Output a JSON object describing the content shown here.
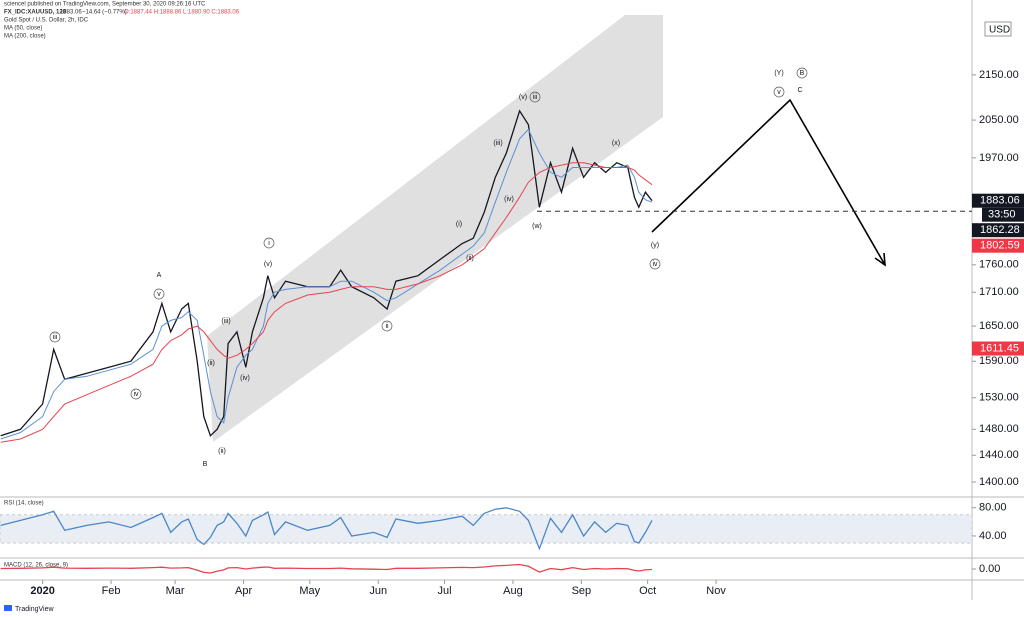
{
  "header": {
    "publisher": "sciencel published on TradingView.com, September 30, 2020 09:26:16 UTC",
    "symbol": "FX_IDC:XAUUSD, 120",
    "last": "1883.06",
    "change": "−14.64 (−0.77%)",
    "ohlc": "O:1887.44  H:1888.86  L:1880.90  C:1883.06",
    "currency": "USD",
    "countdown": "33:50",
    "logo": "TradingView"
  },
  "chart_data": [
    {
      "type": "line",
      "log_scale": true,
      "grid": false,
      "x": [
        -19,
        -10,
        0,
        5,
        10,
        20,
        30,
        40,
        50,
        54,
        58,
        63,
        66,
        70,
        73,
        76,
        79,
        82,
        84,
        88,
        92,
        95,
        100,
        102,
        105,
        110,
        120,
        130,
        135,
        140,
        150,
        156,
        160,
        170,
        180,
        190,
        195,
        200,
        205,
        210,
        216,
        220,
        225,
        230,
        235,
        240,
        245,
        250,
        255,
        260,
        265,
        268,
        270,
        273,
        276
      ],
      "xlim": [
        -19.3,
        420.9
      ],
      "xticks": [
        {
          "value": 0,
          "label": "2020"
        },
        {
          "value": 31,
          "label": "Feb"
        },
        {
          "value": 60,
          "label": "Mar"
        },
        {
          "value": 91,
          "label": "Apr"
        },
        {
          "value": 121,
          "label": "May"
        },
        {
          "value": 152,
          "label": "Jun"
        },
        {
          "value": 182,
          "label": "Jul"
        },
        {
          "value": 213,
          "label": "Aug"
        },
        {
          "value": 244,
          "label": "Sep"
        },
        {
          "value": 274,
          "label": "Oct"
        },
        {
          "value": 305,
          "label": "Nov"
        }
      ],
      "ylim": [
        1381,
        2290
      ],
      "yticks": [
        {
          "value": 1400,
          "label": "1400.00"
        },
        {
          "value": 1440,
          "label": "1440.00"
        },
        {
          "value": 1480,
          "label": "1480.00"
        },
        {
          "value": 1530,
          "label": "1530.00"
        },
        {
          "value": 1590,
          "label": "1590.00"
        },
        {
          "value": 1650,
          "label": "1650.00"
        },
        {
          "value": 1710,
          "label": "1710.00"
        },
        {
          "value": 1760,
          "label": "1760.00"
        },
        {
          "value": 1970,
          "label": "1970.00"
        },
        {
          "value": 2050,
          "label": "2050.00"
        },
        {
          "value": 2150,
          "label": "2150.00"
        }
      ],
      "series": [
        {
          "name": "Gold Spot / U.S. Dollar, 2h, IDC",
          "color": "#131722",
          "values": [
            1470,
            1480,
            1520,
            1610,
            1560,
            1570,
            1580,
            1590,
            1640,
            1690,
            1640,
            1680,
            1690,
            1590,
            1500,
            1470,
            1480,
            1500,
            1620,
            1640,
            1580,
            1640,
            1700,
            1740,
            1700,
            1730,
            1720,
            1720,
            1750,
            1720,
            1700,
            1680,
            1730,
            1740,
            1770,
            1800,
            1810,
            1860,
            1930,
            1980,
            2070,
            2040,
            1870,
            1960,
            1900,
            1990,
            1930,
            1960,
            1940,
            1960,
            1950,
            1890,
            1870,
            1900,
            1883.06
          ]
        },
        {
          "name": "MA (50, close)",
          "color": "#5b8fd6",
          "values": [
            1465,
            1475,
            1500,
            1540,
            1560,
            1565,
            1575,
            1585,
            1610,
            1650,
            1660,
            1665,
            1675,
            1660,
            1600,
            1540,
            1500,
            1490,
            1530,
            1580,
            1600,
            1610,
            1650,
            1690,
            1710,
            1715,
            1720,
            1720,
            1730,
            1730,
            1710,
            1695,
            1700,
            1725,
            1750,
            1780,
            1795,
            1820,
            1880,
            1940,
            2010,
            2030,
            1980,
            1940,
            1930,
            1950,
            1950,
            1950,
            1950,
            1950,
            1955,
            1930,
            1900,
            1885,
            1880
          ]
        },
        {
          "name": "MA (200, close)",
          "color": "#e8424f",
          "values": [
            1460,
            1465,
            1480,
            1500,
            1520,
            1535,
            1550,
            1565,
            1585,
            1610,
            1625,
            1635,
            1645,
            1650,
            1640,
            1625,
            1610,
            1600,
            1595,
            1600,
            1610,
            1620,
            1640,
            1660,
            1675,
            1690,
            1705,
            1710,
            1715,
            1720,
            1720,
            1715,
            1715,
            1725,
            1740,
            1760,
            1775,
            1790,
            1820,
            1850,
            1890,
            1920,
            1940,
            1950,
            1955,
            1960,
            1960,
            1955,
            1950,
            1950,
            1950,
            1945,
            1935,
            1925,
            1915
          ]
        }
      ],
      "price_tags": [
        {
          "value": 1883.06,
          "color": "#131722"
        },
        {
          "value": 1862.28,
          "color": "#131722"
        },
        {
          "value": 1802.59,
          "color": "#f23645"
        },
        {
          "value": 1611.45,
          "color": "#f23645"
        }
      ],
      "annotations": [
        {
          "text": "(Y)"
        },
        {
          "text": "B",
          "circled": true
        },
        {
          "text": "v",
          "circled": true
        },
        {
          "text": "C"
        },
        {
          "text": "(v)"
        },
        {
          "text": "iii",
          "circled": true
        },
        {
          "text": "(iii)"
        },
        {
          "text": "(x)"
        },
        {
          "text": "(iv)"
        },
        {
          "text": "(w)"
        },
        {
          "text": "(i)"
        },
        {
          "text": "(ii)"
        },
        {
          "text": "(y)"
        },
        {
          "text": "iv",
          "circled": true
        },
        {
          "text": "i",
          "circled": true
        },
        {
          "text": "(v)"
        },
        {
          "text": "A"
        },
        {
          "text": "v",
          "circled": true
        },
        {
          "text": "iii",
          "circled": true
        },
        {
          "text": "ii",
          "circled": true
        },
        {
          "text": "(iii)"
        },
        {
          "text": "(ii)"
        },
        {
          "text": "(iv)"
        },
        {
          "text": "iv",
          "circled": true
        },
        {
          "text": "B"
        },
        {
          "text": "(ii)"
        }
      ]
    },
    {
      "type": "line",
      "title": "RSI (14, close)",
      "x": [
        -19,
        -10,
        0,
        5,
        10,
        20,
        30,
        40,
        50,
        54,
        58,
        63,
        66,
        70,
        73,
        76,
        79,
        82,
        84,
        88,
        92,
        95,
        100,
        102,
        105,
        110,
        120,
        130,
        135,
        140,
        150,
        156,
        160,
        170,
        180,
        190,
        195,
        200,
        205,
        210,
        216,
        220,
        225,
        230,
        235,
        240,
        245,
        250,
        255,
        260,
        265,
        268,
        270,
        273,
        276
      ],
      "xlim": [
        -19.3,
        420.9
      ],
      "ylim": [
        13,
        91
      ],
      "band": [
        30,
        70
      ],
      "yticks": [
        {
          "value": 40,
          "label": "40.00"
        },
        {
          "value": 80,
          "label": "80.00"
        }
      ],
      "series": [
        {
          "color": "#4a86c8",
          "values": [
            55,
            62,
            70,
            75,
            48,
            55,
            60,
            52,
            66,
            72,
            45,
            60,
            64,
            35,
            28,
            38,
            55,
            60,
            72,
            58,
            40,
            62,
            70,
            74,
            42,
            60,
            48,
            55,
            66,
            40,
            45,
            38,
            64,
            58,
            62,
            68,
            55,
            72,
            78,
            80,
            75,
            62,
            22,
            65,
            45,
            70,
            40,
            60,
            45,
            58,
            55,
            32,
            30,
            45,
            62
          ]
        }
      ]
    },
    {
      "type": "line",
      "title": "MACD (12, 26, close, 9)",
      "x": [
        -19,
        -10,
        0,
        5,
        10,
        20,
        30,
        40,
        50,
        54,
        58,
        63,
        66,
        70,
        73,
        76,
        79,
        82,
        84,
        88,
        92,
        95,
        100,
        102,
        105,
        110,
        120,
        130,
        135,
        140,
        150,
        156,
        160,
        170,
        180,
        190,
        195,
        200,
        205,
        210,
        216,
        220,
        225,
        230,
        235,
        240,
        245,
        250,
        255,
        260,
        265,
        268,
        270,
        273,
        276
      ],
      "xlim": [
        -19.3,
        420.9
      ],
      "ylim": [
        -40,
        40
      ],
      "yticks": [
        {
          "value": 0,
          "label": "0.00"
        }
      ],
      "series": [
        {
          "color": "#e8424f",
          "values": [
            2,
            3,
            5,
            8,
            4,
            3,
            4,
            3,
            6,
            8,
            4,
            5,
            6,
            -5,
            -15,
            -18,
            -10,
            -4,
            5,
            6,
            0,
            4,
            8,
            9,
            3,
            4,
            2,
            2,
            4,
            1,
            -1,
            -2,
            3,
            3,
            5,
            7,
            6,
            9,
            14,
            16,
            20,
            12,
            -14,
            2,
            -3,
            6,
            -2,
            2,
            0,
            2,
            1,
            -6,
            -9,
            -4,
            -2
          ]
        }
      ]
    }
  ]
}
